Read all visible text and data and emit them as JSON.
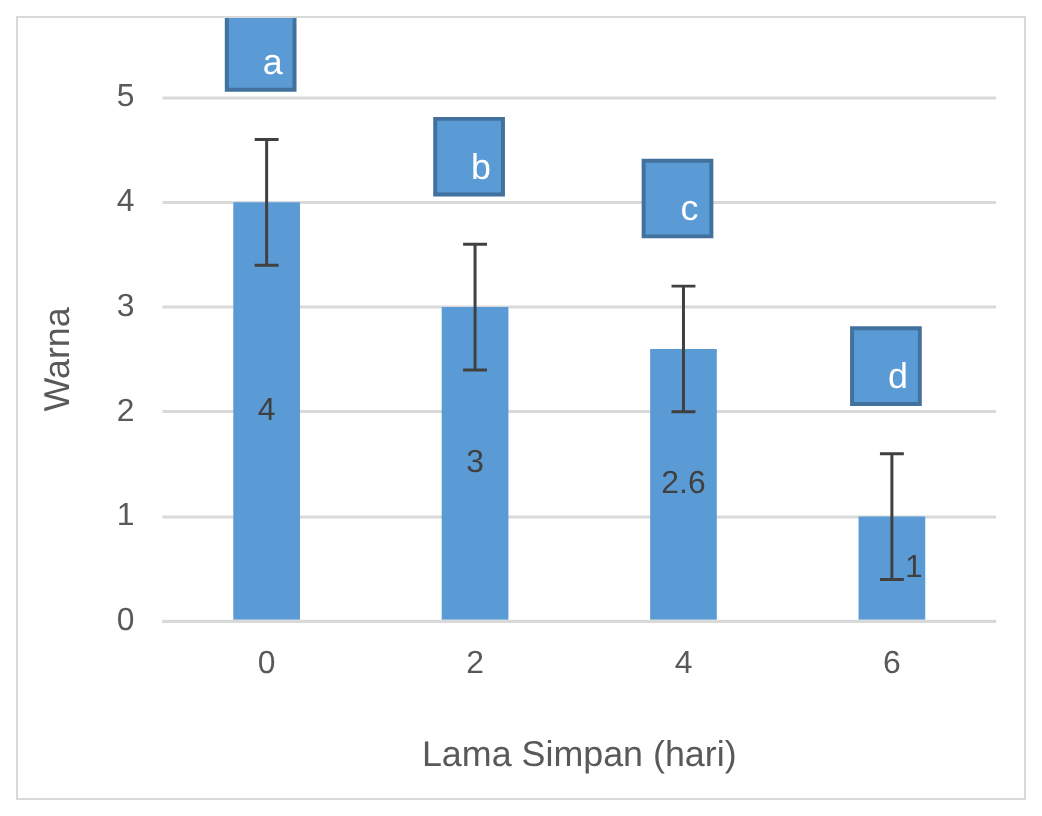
{
  "chart_data": {
    "type": "bar",
    "xlabel": "Lama Simpan (hari)",
    "ylabel": "Warna",
    "categories": [
      "0",
      "2",
      "4",
      "6"
    ],
    "values": [
      4,
      3,
      2.6,
      1
    ],
    "color": "#5b9bd5",
    "errors": [
      0.6,
      0.6,
      0.6,
      0.6
    ],
    "ylim": [
      0,
      5
    ],
    "yticks": [
      0,
      1,
      2,
      3,
      4,
      5
    ],
    "grid": "y",
    "legend": false,
    "data_labels": true,
    "annotations": [
      "a",
      "b",
      "c",
      "d"
    ]
  }
}
